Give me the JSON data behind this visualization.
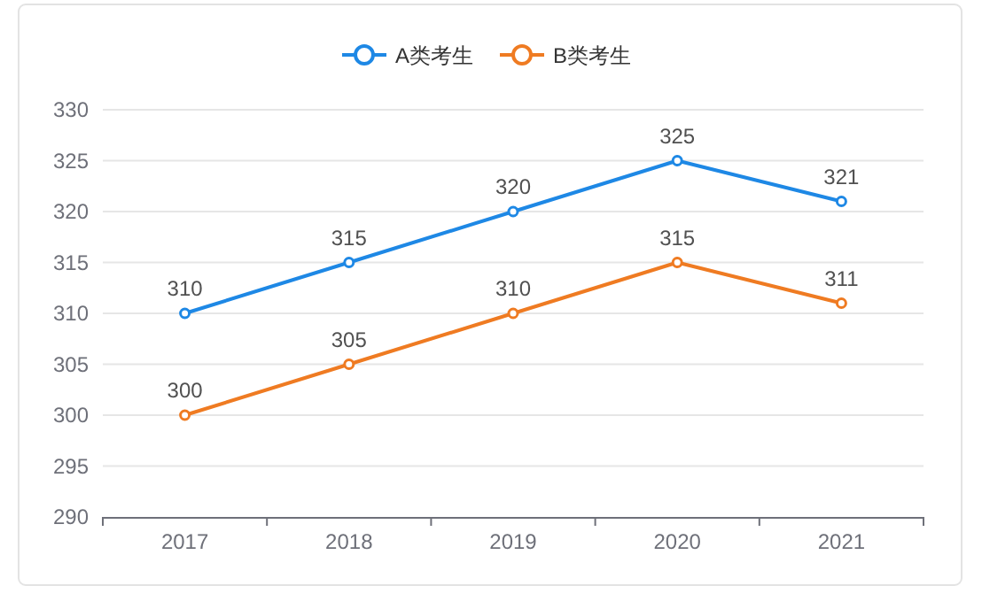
{
  "chart_data": {
    "type": "line",
    "categories": [
      "2017",
      "2018",
      "2019",
      "2020",
      "2021"
    ],
    "series": [
      {
        "name": "A类考生",
        "color": "#1e88e5",
        "values": [
          310,
          315,
          320,
          325,
          321
        ]
      },
      {
        "name": "B类考生",
        "color": "#ef7b22",
        "values": [
          300,
          305,
          310,
          315,
          311
        ]
      }
    ],
    "ylim": [
      290,
      330
    ],
    "yticks": [
      290,
      295,
      300,
      305,
      310,
      315,
      320,
      325,
      330
    ],
    "grid": "y",
    "legend": "top",
    "marker": "circle",
    "line_style": "solid",
    "data_labels": true
  }
}
